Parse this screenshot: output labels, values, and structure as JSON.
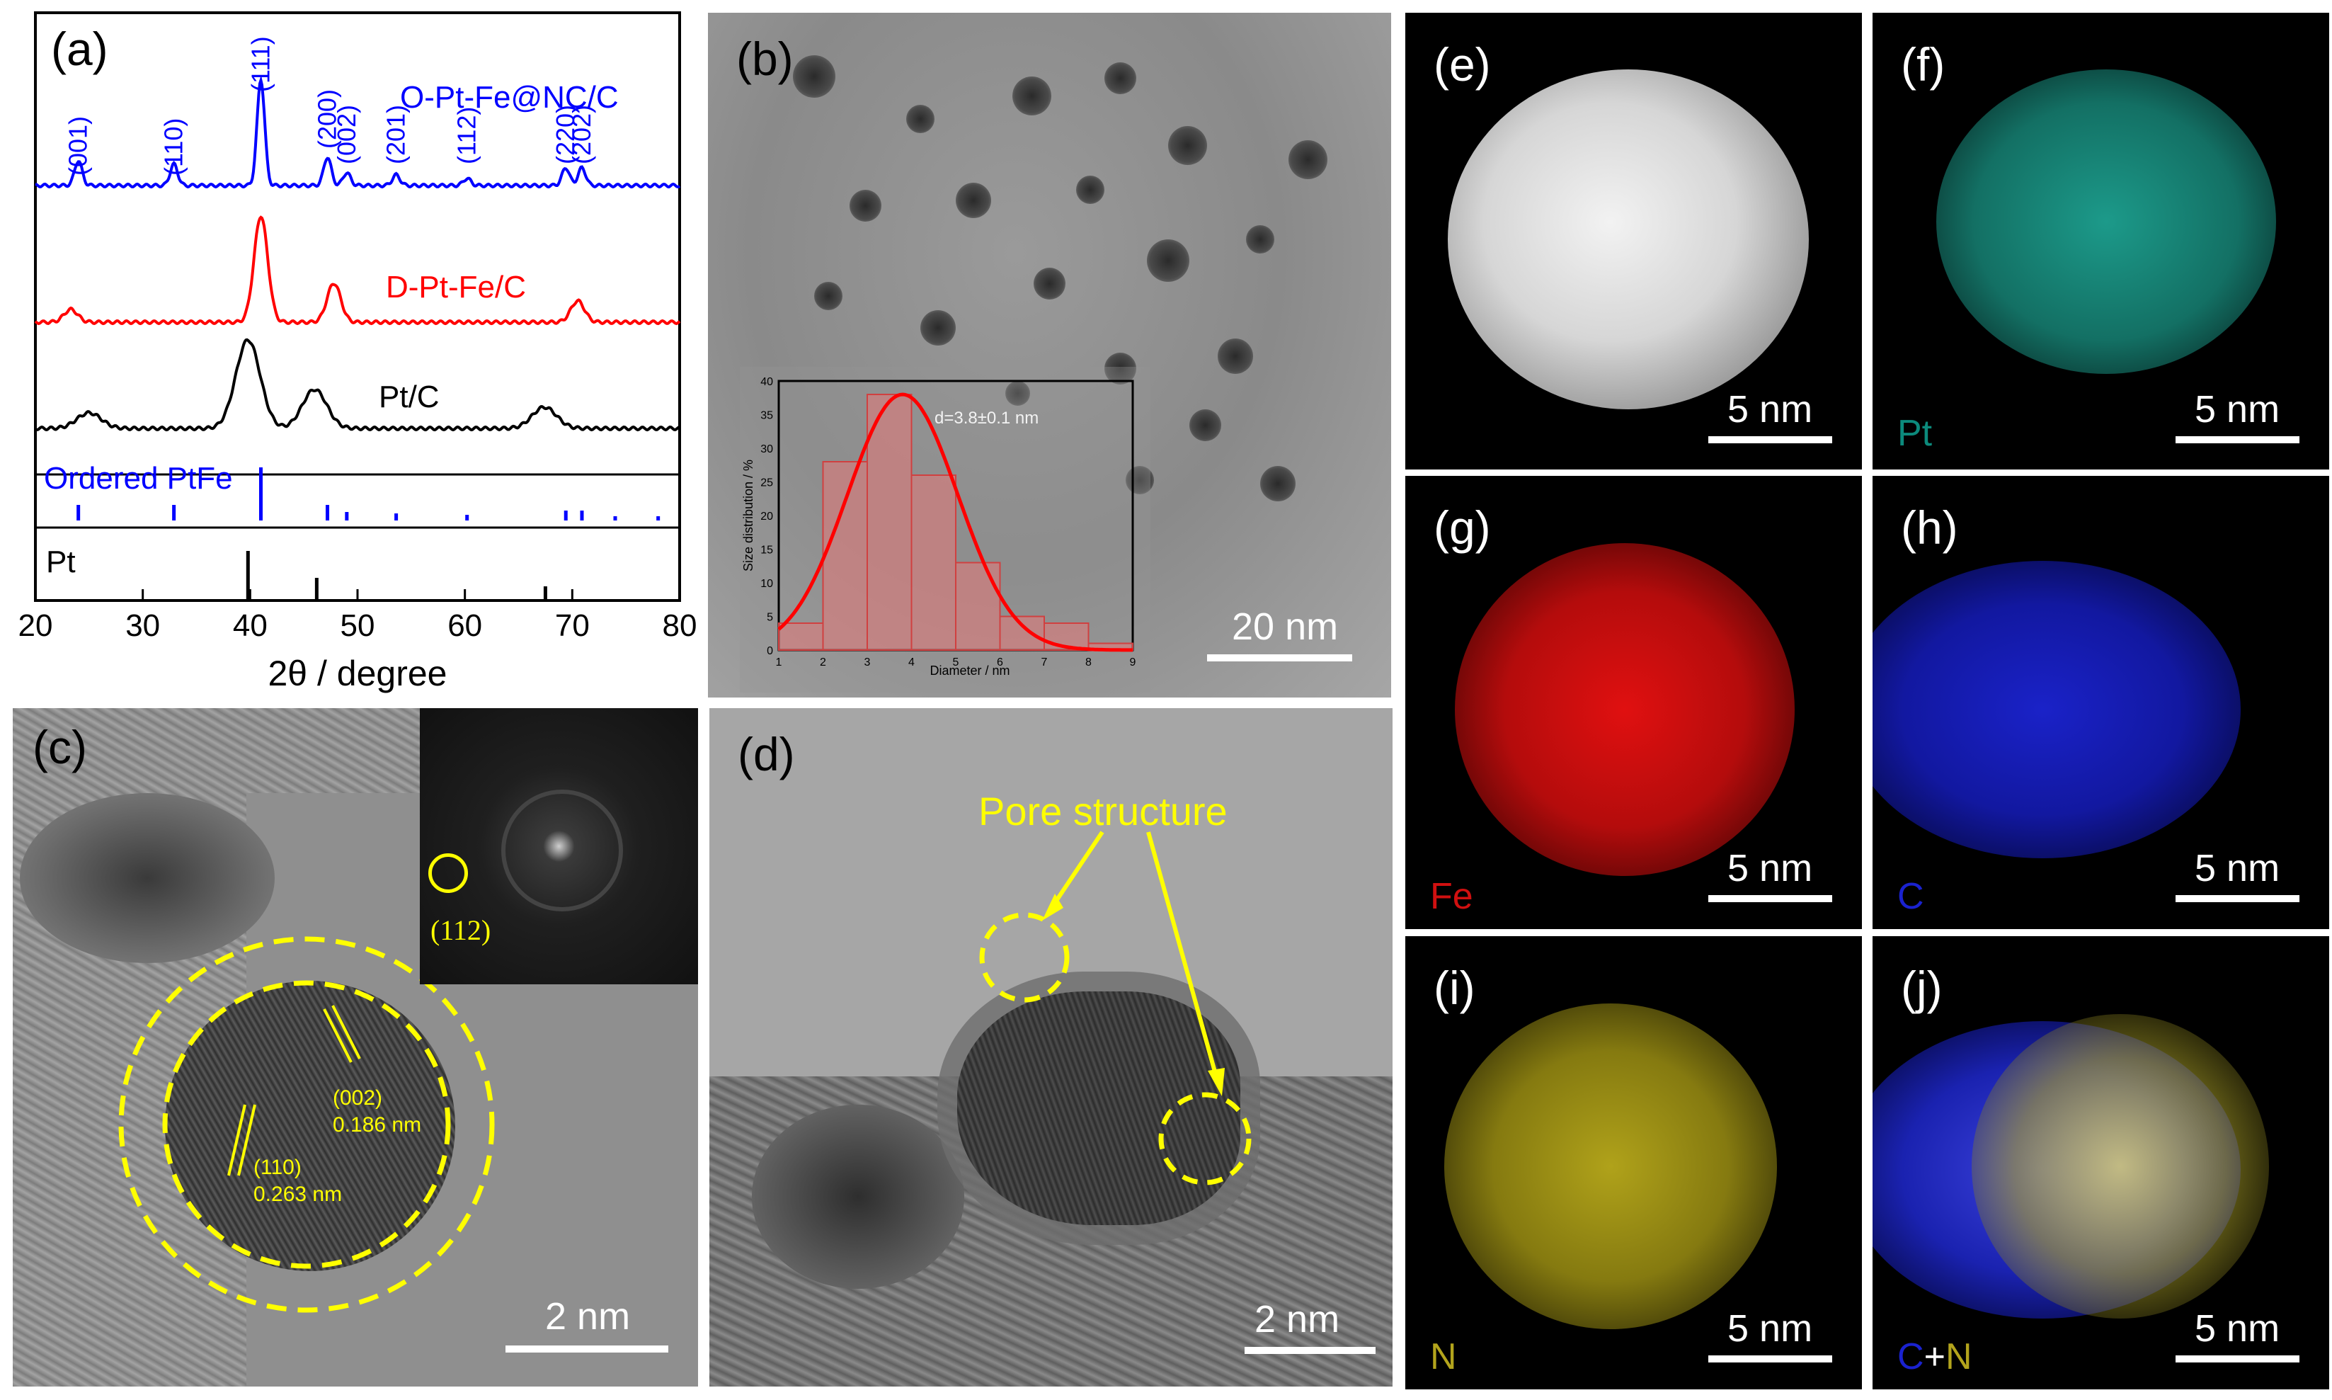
{
  "panel_a": {
    "label": "(a)",
    "xlabel": "2θ / degree",
    "xticks": [
      "20",
      "30",
      "40",
      "50",
      "60",
      "70",
      "80"
    ],
    "curves": {
      "o_pt_fe": "O-Pt-Fe@NC/C",
      "d_pt_fe": "D-Pt-Fe/C",
      "pt_c": "Pt/C"
    },
    "peak_labels": [
      "(001)",
      "(110)",
      "(111)",
      "(200)",
      "(002)",
      "(201)",
      "(112)",
      "(220)",
      "(202)"
    ],
    "ref_ordered": "Ordered PtFe",
    "ref_pt": "Pt",
    "colors": {
      "o_pt_fe": "#0000ff",
      "d_pt_fe": "#ff0000",
      "pt_c": "#000000"
    }
  },
  "panel_b": {
    "label": "(b)",
    "scale": "20 nm",
    "inset": {
      "ylabel": "Size distribution / %",
      "xlabel": "Diameter / nm",
      "annotation": "d=3.8±0.1 nm",
      "xticks": [
        "1",
        "2",
        "3",
        "4",
        "5",
        "6",
        "7",
        "8",
        "9"
      ],
      "yticks": [
        "0",
        "5",
        "10",
        "15",
        "20",
        "25",
        "30",
        "35",
        "40"
      ]
    }
  },
  "panel_c": {
    "label": "(c)",
    "scale": "2 nm",
    "fft_label": "(112)",
    "planes": [
      {
        "hkl": "(002)",
        "d": "0.186 nm"
      },
      {
        "hkl": "(110)",
        "d": "0.263 nm"
      }
    ]
  },
  "panel_d": {
    "label": "(d)",
    "scale": "2 nm",
    "annotation": "Pore structure"
  },
  "maps": [
    {
      "label": "(e)",
      "element": "",
      "scale": "5 nm"
    },
    {
      "label": "(f)",
      "element": "Pt",
      "scale": "5 nm"
    },
    {
      "label": "(g)",
      "element": "Fe",
      "scale": "5 nm"
    },
    {
      "label": "(h)",
      "element": "C",
      "scale": "5 nm"
    },
    {
      "label": "(i)",
      "element": "N",
      "scale": "5 nm"
    },
    {
      "label": "(j)",
      "element_c": "C",
      "element_plus": "+",
      "element_n": "N",
      "scale": "5 nm"
    }
  ],
  "chart_data": [
    {
      "type": "line",
      "xlabel": "2θ / degree",
      "xlim": [
        20,
        80
      ],
      "series": [
        {
          "name": "O-Pt-Fe@NC/C",
          "peaks_2theta": [
            24.0,
            32.9,
            41.0,
            47.2,
            49.0,
            53.6,
            60.2,
            69.4,
            70.9
          ]
        },
        {
          "name": "D-Pt-Fe/C",
          "peaks_2theta": [
            23.3,
            41.0,
            47.8,
            70.5
          ]
        },
        {
          "name": "Pt/C",
          "peaks_2theta": [
            25.0,
            39.8,
            46.0,
            67.4
          ]
        }
      ],
      "reference": [
        {
          "name": "Ordered PtFe",
          "positions": [
            24.0,
            32.9,
            41.0,
            47.2,
            49.0,
            53.6,
            60.2,
            69.4,
            70.9,
            74.0,
            78.0
          ]
        },
        {
          "name": "Pt",
          "positions": [
            39.8,
            46.2,
            67.5
          ]
        }
      ]
    },
    {
      "type": "bar",
      "title": "d=3.8±0.1 nm",
      "xlabel": "Diameter / nm",
      "ylabel": "Size distribution / %",
      "xlim": [
        1,
        9
      ],
      "ylim": [
        0,
        40
      ],
      "bins": [
        [
          1,
          2
        ],
        [
          2,
          3
        ],
        [
          3,
          4
        ],
        [
          4,
          5
        ],
        [
          5,
          6
        ],
        [
          6,
          7
        ],
        [
          7,
          8
        ],
        [
          8,
          9
        ]
      ],
      "values": [
        4,
        28,
        38,
        26,
        13,
        5,
        4,
        1
      ],
      "fit": "gaussian"
    }
  ]
}
